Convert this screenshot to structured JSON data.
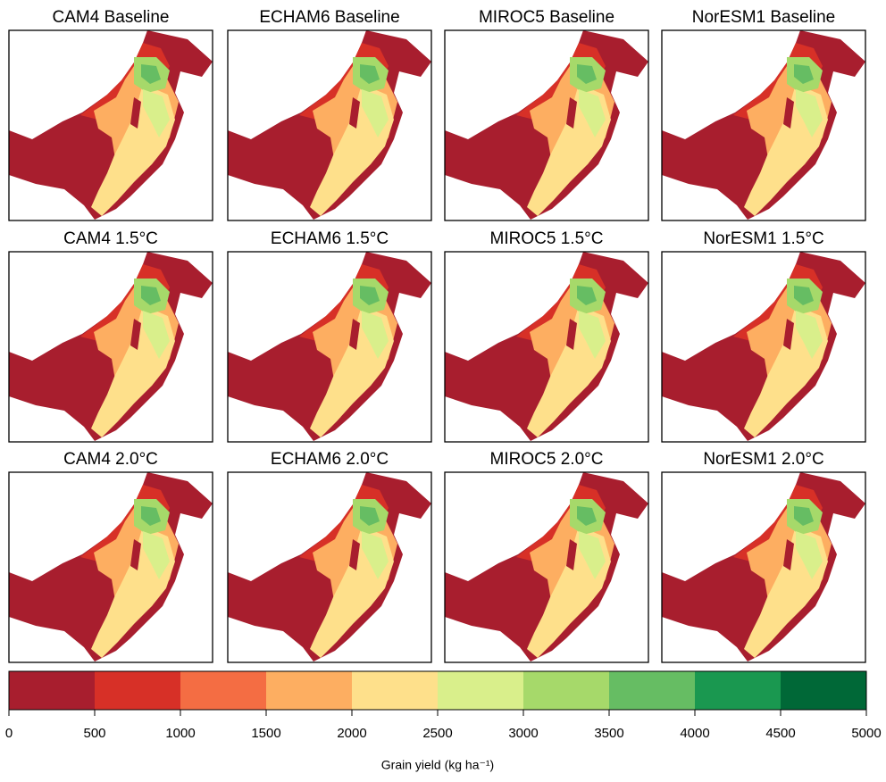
{
  "panels": [
    {
      "title": "CAM4 Baseline"
    },
    {
      "title": "ECHAM6 Baseline"
    },
    {
      "title": "MIROC5 Baseline"
    },
    {
      "title": "NorESM1 Baseline"
    },
    {
      "title": "CAM4 1.5°C"
    },
    {
      "title": "ECHAM6 1.5°C"
    },
    {
      "title": "MIROC5 1.5°C"
    },
    {
      "title": "NorESM1 1.5°C"
    },
    {
      "title": "CAM4 2.0°C"
    },
    {
      "title": "ECHAM6 2.0°C"
    },
    {
      "title": "MIROC5 2.0°C"
    },
    {
      "title": "NorESM1 2.0°C"
    }
  ],
  "colorbar": {
    "bins": [
      0,
      500,
      1000,
      1500,
      2000,
      2500,
      3000,
      3500,
      4000,
      4500,
      5000
    ],
    "colors": [
      "#a81e2e",
      "#d73027",
      "#f46d43",
      "#fdae61",
      "#fee08b",
      "#d9ef8b",
      "#a6d96a",
      "#66bd63",
      "#1a9850",
      "#006837"
    ],
    "label": "Grain yield (kg ha⁻¹)"
  }
}
